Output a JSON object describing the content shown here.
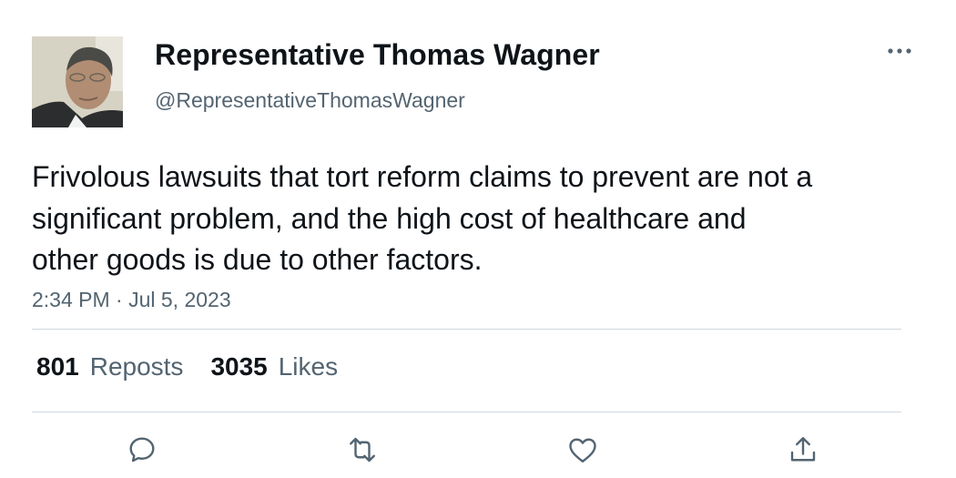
{
  "author": {
    "display_name": "Representative Thomas Wagner",
    "handle": "@RepresentativeThomasWagner",
    "avatar_icon": "person-photo"
  },
  "tweet": {
    "text": "Frivolous lawsuits that tort reform claims to prevent are not a significant problem, and the high cost of healthcare and other goods is due to other factors.",
    "timestamp": "2:34 PM · Jul 5, 2023"
  },
  "stats": {
    "reposts_count": "801",
    "reposts_label": "Reposts",
    "likes_count": "3035",
    "likes_label": "Likes"
  },
  "actions": [
    "reply-icon",
    "repost-icon",
    "like-icon",
    "share-icon"
  ],
  "colors": {
    "text": "#0f1419",
    "secondary": "#536471",
    "divider": "#cfd9de"
  }
}
